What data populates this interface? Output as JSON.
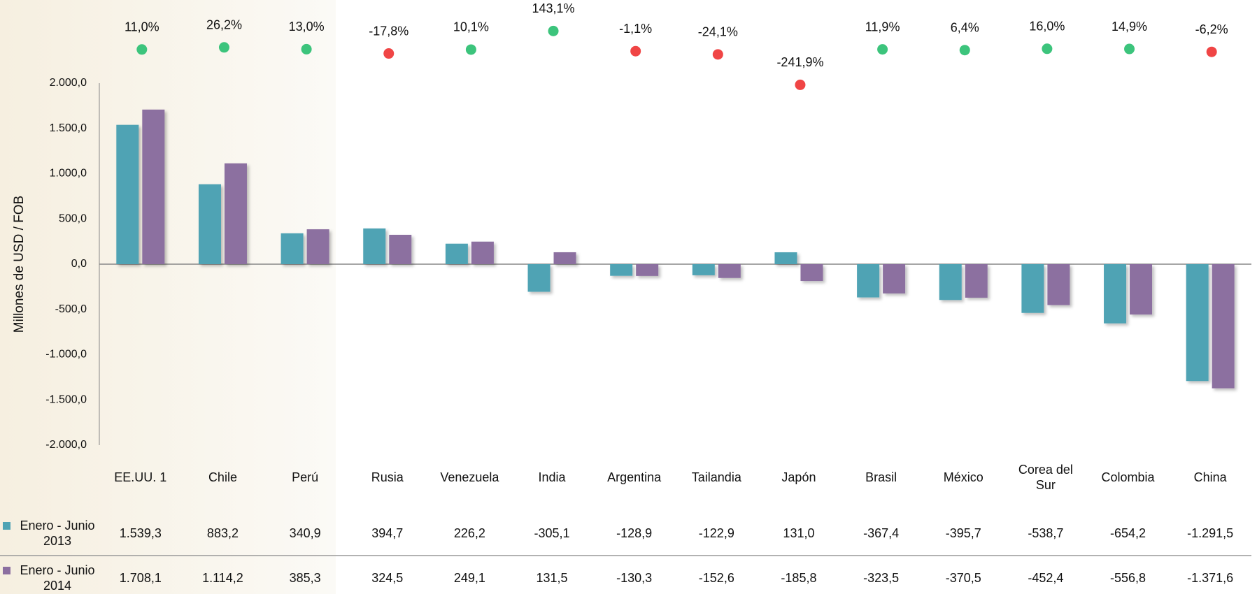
{
  "chart_data": {
    "type": "bar",
    "y_axis_label": "Millones de USD / FOB",
    "categories": [
      "EE.UU. 1",
      "Chile",
      "Perú",
      "Rusia",
      "Venezuela",
      "India",
      "Argentina",
      "Tailandia",
      "Japón",
      "Brasil",
      "México",
      "Corea del Sur",
      "Colombia",
      "China"
    ],
    "series": [
      {
        "name": "Enero - Junio 2013",
        "color": "#4fa3b4",
        "values": [
          1539.3,
          883.2,
          340.9,
          394.7,
          226.2,
          -305.1,
          -128.9,
          -122.9,
          131.0,
          -367.4,
          -395.7,
          -538.7,
          -654.2,
          -1291.5
        ],
        "value_labels": [
          "1.539,3",
          "883,2",
          "340,9",
          "394,7",
          "226,2",
          "-305,1",
          "-128,9",
          "-122,9",
          "131,0",
          "-367,4",
          "-395,7",
          "-538,7",
          "-654,2",
          "-1.291,5"
        ]
      },
      {
        "name": "Enero - Junio 2014",
        "color": "#8c6fa0",
        "values": [
          1708.1,
          1114.2,
          385.3,
          324.5,
          249.1,
          131.5,
          -130.3,
          -152.6,
          -185.8,
          -323.5,
          -370.5,
          -452.4,
          -556.8,
          -1371.6
        ],
        "value_labels": [
          "1.708,1",
          "1.114,2",
          "385,3",
          "324,5",
          "249,1",
          "131,5",
          "-130,3",
          "-152,6",
          "-185,8",
          "-323,5",
          "-370,5",
          "-452,4",
          "-556,8",
          "-1.371,6"
        ]
      }
    ],
    "change": {
      "type": "scatter",
      "axis": "y2",
      "positive_color": "#3cc47c",
      "negative_color": "#f04545",
      "values": [
        11.0,
        26.2,
        13.0,
        -17.8,
        10.1,
        143.1,
        -1.1,
        -24.1,
        -241.9,
        11.9,
        6.4,
        16.0,
        14.9,
        -6.2
      ],
      "value_labels": [
        "11,0%",
        "26,2%",
        "13,0%",
        "-17,8%",
        "10,1%",
        "143,1%",
        "-1,1%",
        "-24,1%",
        "-241,9%",
        "11,9%",
        "6,4%",
        "16,0%",
        "14,9%",
        "-6,2%"
      ]
    },
    "ylim": [
      -2000,
      2000
    ],
    "yticks": [
      {
        "value": 2000,
        "label": "2.000,0"
      },
      {
        "value": 1500,
        "label": "1.500,0"
      },
      {
        "value": 1000,
        "label": "1.000,0"
      },
      {
        "value": 500,
        "label": "500,0"
      },
      {
        "value": 0,
        "label": "0,0"
      },
      {
        "value": -500,
        "label": "-500,0"
      },
      {
        "value": -1000,
        "label": "-1.000,0"
      },
      {
        "value": -1500,
        "label": "-1.500,0"
      },
      {
        "value": -2000,
        "label": "-2.000,0"
      }
    ],
    "y2lim": [
      -300,
      200
    ],
    "grid": false
  }
}
